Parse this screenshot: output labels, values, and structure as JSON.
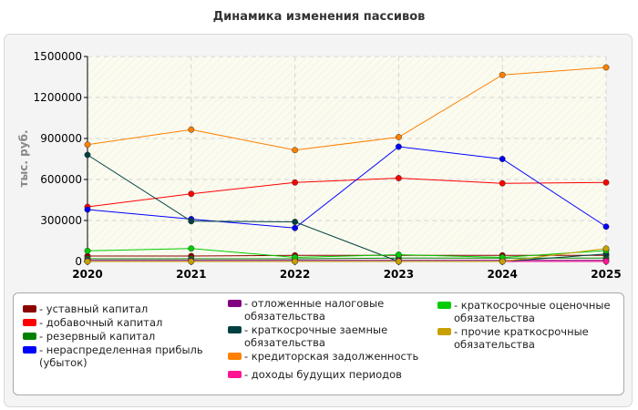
{
  "chart_data": {
    "type": "line",
    "title": "Динамика изменения пассивов",
    "ylabel": "тыс. руб.",
    "xlabel": "",
    "x": [
      "2020",
      "2021",
      "2022",
      "2023",
      "2024",
      "2025"
    ],
    "ylim": [
      0,
      1500000
    ],
    "yticks": [
      "0",
      "300000",
      "600000",
      "900000",
      "1200000",
      "1500000"
    ],
    "grid": true,
    "legend_position": "bottom",
    "series": [
      {
        "name": "уставный капитал",
        "color": "#8b0000",
        "values": [
          40000,
          40000,
          45000,
          45000,
          45000,
          45000
        ]
      },
      {
        "name": "добавочный капитал",
        "color": "#ff0000",
        "values": [
          400000,
          495000,
          578000,
          610000,
          572000,
          578000
        ]
      },
      {
        "name": "резервный капитал",
        "color": "#008000",
        "values": [
          20000,
          20000,
          20000,
          25000,
          25000,
          25000
        ]
      },
      {
        "name": "нераспределенная прибыль (убыток)",
        "color": "#0000ff",
        "values": [
          380000,
          310000,
          245000,
          840000,
          750000,
          255000
        ]
      },
      {
        "name": "отложенные налоговые обязательства",
        "color": "#800080",
        "values": [
          8000,
          8000,
          8000,
          8000,
          8000,
          8000
        ]
      },
      {
        "name": "краткосрочные заемные обязательства",
        "color": "#004040",
        "values": [
          780000,
          295000,
          290000,
          0,
          0,
          55000
        ]
      },
      {
        "name": "кредиторская задолженность",
        "color": "#ff8000",
        "values": [
          855000,
          965000,
          815000,
          910000,
          1365000,
          1420000
        ]
      },
      {
        "name": "доходы будущих периодов",
        "color": "#ff1493",
        "values": [
          0,
          0,
          0,
          0,
          0,
          0
        ]
      },
      {
        "name": "краткосрочные оценочные обязательства",
        "color": "#00cc00",
        "values": [
          78000,
          95000,
          30000,
          50000,
          30000,
          80000
        ]
      },
      {
        "name": "прочие краткосрочные обязательства",
        "color": "#c8a000",
        "values": [
          0,
          0,
          0,
          0,
          0,
          95000
        ]
      }
    ]
  }
}
